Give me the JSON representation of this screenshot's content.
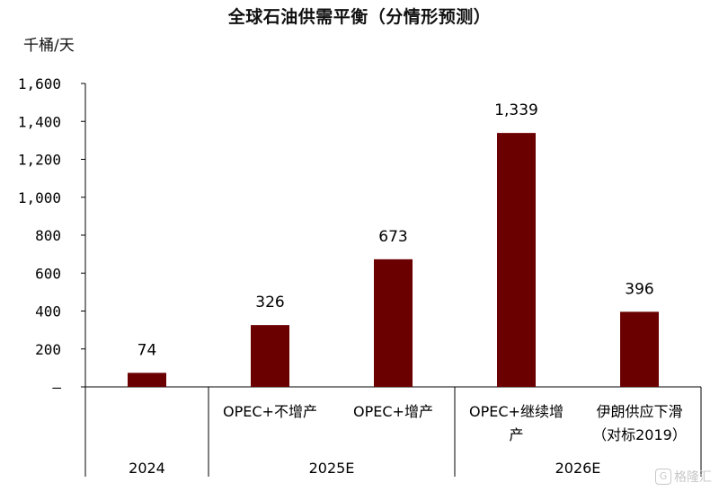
{
  "chart_data": {
    "type": "bar",
    "title": "全球石油供需平衡（分情形预测）",
    "ylabel": "千桶/天",
    "ylim": [
      0,
      1600
    ],
    "yticks": [
      "–",
      "200",
      "400",
      "600",
      "800",
      "1,000",
      "1,200",
      "1,400",
      "1,600"
    ],
    "bar_color": "#6b0000",
    "categories": [
      "",
      "OPEC+不增产",
      "OPEC+增产",
      "OPEC+继续增产",
      "伊朗供应下滑（对标2019）"
    ],
    "category_lines": [
      [],
      [
        "OPEC+不增产"
      ],
      [
        "OPEC+增产"
      ],
      [
        "OPEC+继续增",
        "产"
      ],
      [
        "伊朗供应下滑",
        "（对标2019）"
      ]
    ],
    "values": [
      74,
      326,
      673,
      1339,
      396
    ],
    "data_labels": [
      "74",
      "326",
      "673",
      "1,339",
      "396"
    ],
    "groups": [
      {
        "label": "2024",
        "members": [
          0
        ]
      },
      {
        "label": "2025E",
        "members": [
          1,
          2
        ]
      },
      {
        "label": "2026E",
        "members": [
          3,
          4
        ]
      }
    ]
  },
  "watermark": {
    "icon": "G",
    "text": "格隆汇"
  }
}
